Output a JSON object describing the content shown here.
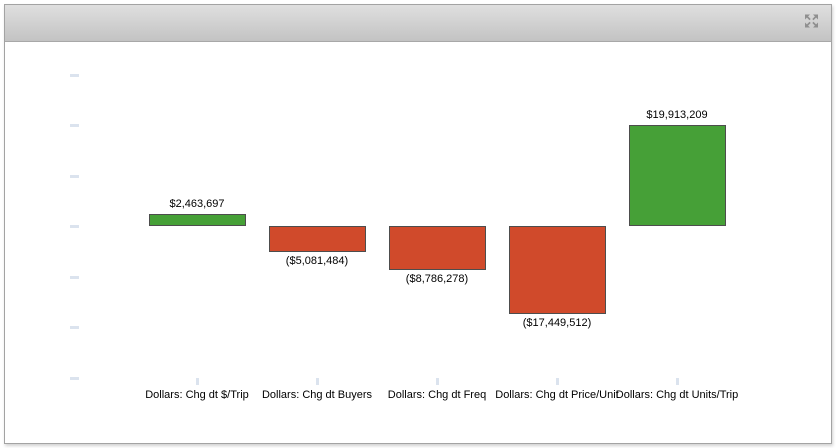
{
  "header": {
    "title": "",
    "icons": {
      "action": "expand-arrows-icon"
    },
    "icon_color": "#8f8f8f"
  },
  "chart_data": {
    "type": "bar",
    "title": "",
    "xlabel": "",
    "ylabel": "",
    "categories": [
      "Dollars: Chg dt $/Trip",
      "Dollars: Chg dt Buyers",
      "Dollars: Chg dt Freq",
      "Dollars: Chg dt Price/Unit",
      "Dollars: Chg dt Units/Trip"
    ],
    "values": [
      2463697,
      -5081484,
      -8786278,
      -17449512,
      19913209
    ],
    "value_labels": [
      "$2,463,697",
      "($5,081,484)",
      "($8,786,278)",
      "($17,449,512)",
      "$19,913,209"
    ],
    "ylim": [
      -30000000,
      30000000
    ],
    "ytick_interval": 10000000,
    "grid": false,
    "legend": "none",
    "baseline": 0,
    "colors": {
      "positive": "#46a037",
      "negative": "#d04a2b",
      "bar_border": "#4d4d4d",
      "axis_tick": "#dbe3ee"
    }
  }
}
